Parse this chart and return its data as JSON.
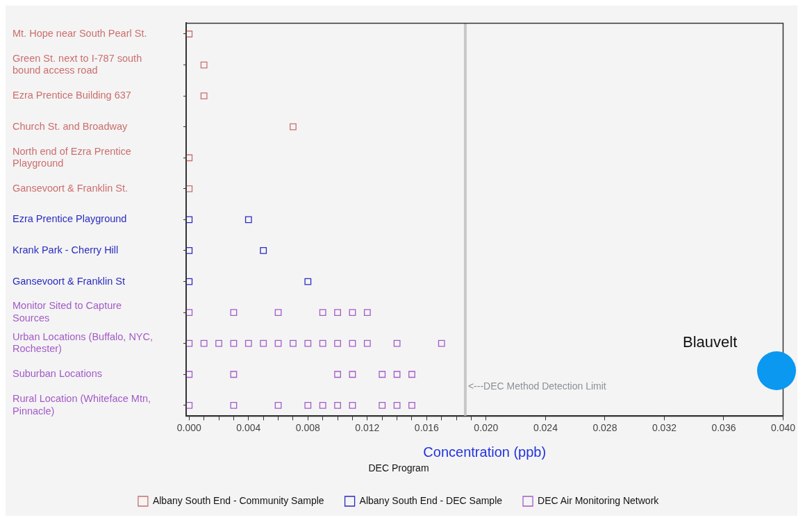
{
  "chart_data": {
    "type": "scatter",
    "orientation": "horizontal",
    "xlabel": "Concentration (ppb)",
    "legend_title": "DEC Program",
    "legend": "bottom",
    "grid": false,
    "marker": "square",
    "categories": [
      "Mt. Hope near South Pearl St.",
      "Green St. next to I-787 south bound access road",
      "Ezra Prentice Building 637",
      "Church St. and Broadway",
      "North end of Ezra Prentice Playground",
      "Gansevoort & Franklin St.",
      "Ezra Prentice Playground",
      "Krank Park - Cherry Hill",
      "Gansevoort & Franklin St",
      "Monitor Sited to Capture Sources",
      "Urban Locations (Buffalo, NYC, Rochester)",
      "Suburban Locations",
      "Rural Location (Whiteface Mtn, Pinnacle)"
    ],
    "xlim": [
      -0.0002,
      0.04
    ],
    "xticks": [
      {
        "value": 0,
        "label": "0.000"
      },
      {
        "value": 0.001,
        "label": null
      },
      {
        "value": 0.002,
        "label": null
      },
      {
        "value": 0.003,
        "label": null
      },
      {
        "value": 0.004,
        "label": "0.004"
      },
      {
        "value": 0.005,
        "label": null
      },
      {
        "value": 0.006,
        "label": null
      },
      {
        "value": 0.007,
        "label": null
      },
      {
        "value": 0.008,
        "label": "0.008"
      },
      {
        "value": 0.009,
        "label": null
      },
      {
        "value": 0.01,
        "label": null
      },
      {
        "value": 0.011,
        "label": null
      },
      {
        "value": 0.012,
        "label": "0.012"
      },
      {
        "value": 0.013,
        "label": null
      },
      {
        "value": 0.014,
        "label": null
      },
      {
        "value": 0.015,
        "label": null
      },
      {
        "value": 0.016,
        "label": "0.016"
      },
      {
        "value": 0.017,
        "label": null
      },
      {
        "value": 0.018,
        "label": null
      },
      {
        "value": 0.019,
        "label": null
      },
      {
        "value": 0.02,
        "label": "0.020"
      },
      {
        "value": 0.024,
        "label": "0.024"
      },
      {
        "value": 0.028,
        "label": "0.028"
      },
      {
        "value": 0.032,
        "label": "0.032"
      },
      {
        "value": 0.036,
        "label": "0.036"
      },
      {
        "value": 0.04,
        "label": "0.040"
      }
    ],
    "series": [
      {
        "name": "Albany South End - Community Sample",
        "color": "#cc6e6e",
        "x": [
          "Mt. Hope near South Pearl St.",
          "Green St. next to I-787 south bound access road",
          "Ezra Prentice Building 637",
          "Church St. and Broadway",
          "North end of Ezra Prentice Playground",
          "Gansevoort & Franklin St."
        ],
        "values": [
          0,
          0.001,
          0.001,
          0.007,
          0,
          0
        ]
      },
      {
        "name": "Albany South End - DEC Sample",
        "color": "#2b2bc0",
        "x": [
          "Ezra Prentice Playground",
          "Ezra Prentice Playground",
          "Krank Park - Cherry Hill",
          "Krank Park - Cherry Hill",
          "Gansevoort & Franklin St",
          "Gansevoort & Franklin St"
        ],
        "values": [
          0,
          0.004,
          0,
          0.005,
          0,
          0.008
        ]
      },
      {
        "name": "DEC Air Monitoring Network",
        "color": "#a35bc7",
        "x": [
          "Monitor Sited to Capture Sources",
          "Monitor Sited to Capture Sources",
          "Monitor Sited to Capture Sources",
          "Monitor Sited to Capture Sources",
          "Monitor Sited to Capture Sources",
          "Monitor Sited to Capture Sources",
          "Monitor Sited to Capture Sources",
          "Urban Locations (Buffalo, NYC, Rochester)",
          "Urban Locations (Buffalo, NYC, Rochester)",
          "Urban Locations (Buffalo, NYC, Rochester)",
          "Urban Locations (Buffalo, NYC, Rochester)",
          "Urban Locations (Buffalo, NYC, Rochester)",
          "Urban Locations (Buffalo, NYC, Rochester)",
          "Urban Locations (Buffalo, NYC, Rochester)",
          "Urban Locations (Buffalo, NYC, Rochester)",
          "Urban Locations (Buffalo, NYC, Rochester)",
          "Urban Locations (Buffalo, NYC, Rochester)",
          "Urban Locations (Buffalo, NYC, Rochester)",
          "Urban Locations (Buffalo, NYC, Rochester)",
          "Urban Locations (Buffalo, NYC, Rochester)",
          "Urban Locations (Buffalo, NYC, Rochester)",
          "Urban Locations (Buffalo, NYC, Rochester)",
          "Suburban Locations",
          "Suburban Locations",
          "Suburban Locations",
          "Suburban Locations",
          "Suburban Locations",
          "Suburban Locations",
          "Suburban Locations",
          "Rural Location (Whiteface Mtn, Pinnacle)",
          "Rural Location (Whiteface Mtn, Pinnacle)",
          "Rural Location (Whiteface Mtn, Pinnacle)",
          "Rural Location (Whiteface Mtn, Pinnacle)",
          "Rural Location (Whiteface Mtn, Pinnacle)",
          "Rural Location (Whiteface Mtn, Pinnacle)",
          "Rural Location (Whiteface Mtn, Pinnacle)",
          "Rural Location (Whiteface Mtn, Pinnacle)",
          "Rural Location (Whiteface Mtn, Pinnacle)",
          "Rural Location (Whiteface Mtn, Pinnacle)"
        ],
        "values": [
          0,
          0.003,
          0.006,
          0.009,
          0.01,
          0.011,
          0.012,
          0,
          0.001,
          0.002,
          0.003,
          0.004,
          0.005,
          0.006,
          0.007,
          0.008,
          0.009,
          0.01,
          0.011,
          0.012,
          0.014,
          0.017,
          0,
          0.003,
          0.01,
          0.011,
          0.013,
          0.014,
          0.015,
          0,
          0.003,
          0.006,
          0.008,
          0.009,
          0.01,
          0.011,
          0.013,
          0.014,
          0.015
        ]
      }
    ],
    "ref_lines": [
      {
        "axis": "x",
        "value": 0.0186,
        "label": "<---DEC Method Detection Limit",
        "color": "#c8c8c8"
      }
    ],
    "annotations": [
      "Blauvelt"
    ]
  }
}
